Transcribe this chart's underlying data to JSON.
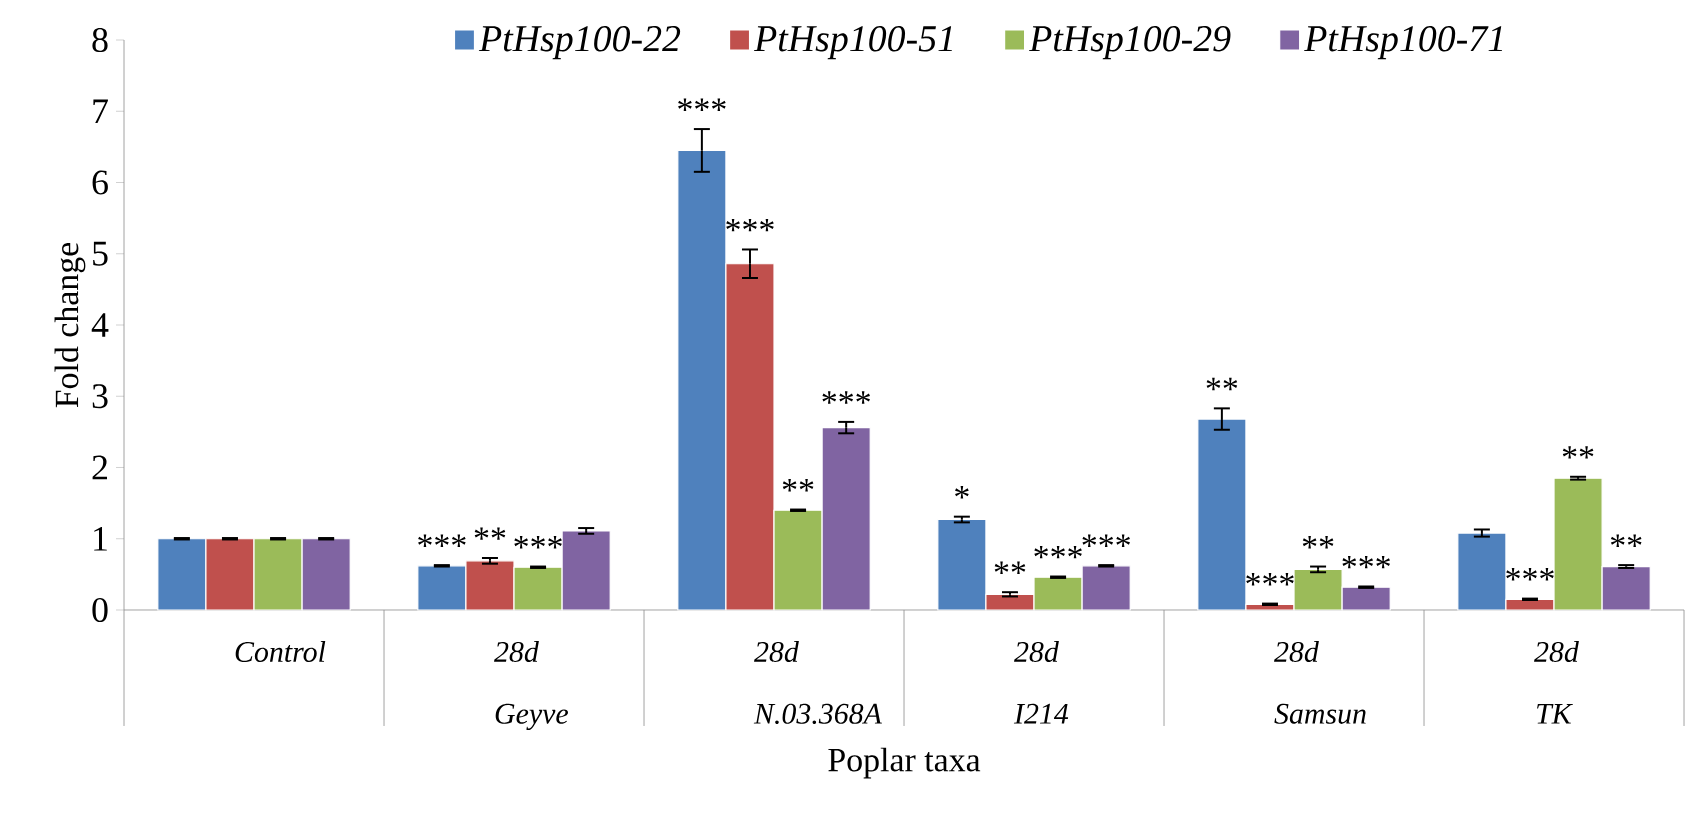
{
  "chart_data": {
    "type": "bar",
    "xlabel": "Poplar taxa",
    "ylabel": "Fold change",
    "categories": [
      "*Control*",
      "*28d Geyve*",
      "*28d N.03.368A*",
      "*28d I214*",
      "*28d Samsun*",
      "*28d TK*"
    ],
    "ylim": [
      0,
      8
    ],
    "yticks": [
      0,
      1,
      2,
      3,
      4,
      5,
      6,
      7,
      8
    ],
    "legend": "top",
    "grid": false,
    "series": [
      {
        "name": "*PtHsp100-22*",
        "color": "#4f81bd",
        "values": [
          1.0,
          0.62,
          6.45,
          1.27,
          2.68,
          1.08
        ],
        "errors": [
          0.01,
          0.01,
          0.3,
          0.04,
          0.15,
          0.05
        ],
        "value_labels": [
          null,
          "***",
          "***",
          "*",
          "**",
          null
        ]
      },
      {
        "name": "*PtHsp100-51*",
        "color": "#c0504d",
        "values": [
          1.0,
          0.69,
          4.86,
          0.22,
          0.08,
          0.15
        ],
        "errors": [
          0.01,
          0.04,
          0.2,
          0.03,
          0.01,
          0.01
        ],
        "value_labels": [
          null,
          "**",
          "***",
          "**",
          "***",
          "***"
        ]
      },
      {
        "name": "*PtHsp100-29*",
        "color": "#9bbb59",
        "values": [
          1.0,
          0.6,
          1.4,
          0.46,
          0.57,
          1.85
        ],
        "errors": [
          0.01,
          0.01,
          0.01,
          0.01,
          0.04,
          0.02
        ],
        "value_labels": [
          null,
          "***",
          "**",
          "***",
          "**",
          "**"
        ]
      },
      {
        "name": "*PtHsp100-71*",
        "color": "#8064a2",
        "values": [
          1.0,
          1.11,
          2.56,
          0.62,
          0.32,
          0.61
        ],
        "errors": [
          0.01,
          0.04,
          0.08,
          0.01,
          0.01,
          0.02
        ],
        "value_labels": [
          null,
          null,
          "***",
          "***",
          "***",
          "**"
        ]
      }
    ]
  }
}
